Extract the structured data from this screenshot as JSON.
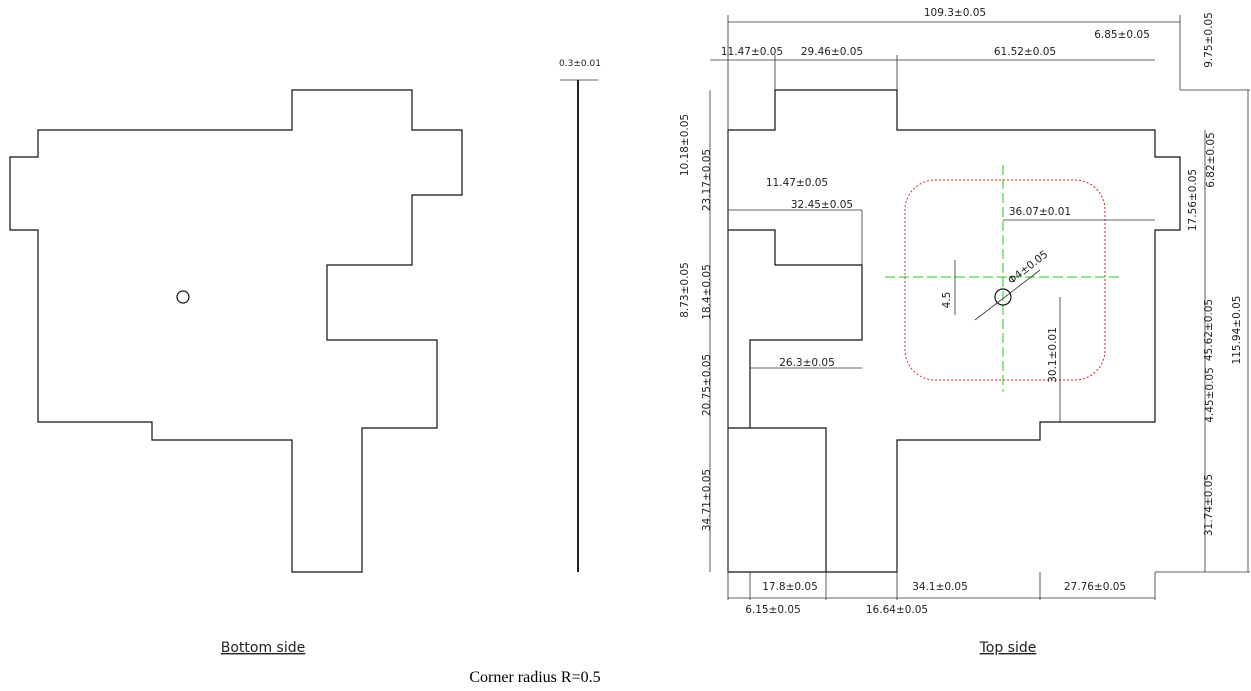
{
  "views": {
    "bottom": {
      "label": "Bottom side"
    },
    "top": {
      "label": "Top side"
    }
  },
  "thickness": "0.3±0.01",
  "note": "Corner radius R=0.5",
  "dimensions": [
    "109.3±0.05",
    "11.47±0.05",
    "29.46±0.05",
    "61.52±0.05",
    "6.85±0.05",
    "9.75±0.05",
    "10.18±0.05",
    "23.17±0.05",
    "11.47±0.05",
    "32.45±0.05",
    "36.07±0.01",
    "17.56±0.05",
    "6.82±0.05",
    "8.73±0.05",
    "18.4±0.05",
    "4.5",
    "Φ4±0.05",
    "26.3±0.05",
    "20.75±0.05",
    "30.1±0.01",
    "45.62±0.05",
    "4.45±0.05",
    "115.94±0.05",
    "34.71±0.05",
    "31.74±0.05",
    "17.8±0.05",
    "34.1±0.05",
    "27.76±0.05",
    "6.15±0.05",
    "16.64±0.05"
  ]
}
